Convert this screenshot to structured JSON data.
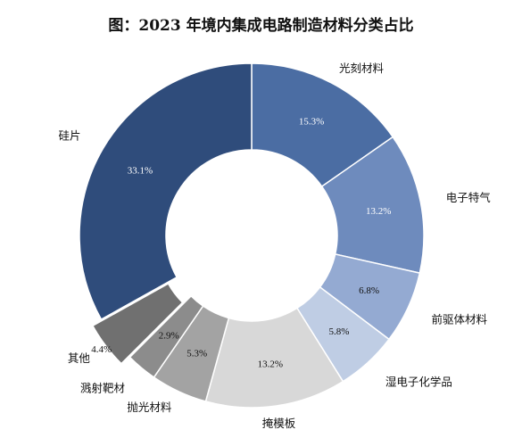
{
  "chart_data": {
    "type": "pie",
    "title": "图：2023 年境内集成电路制造材料分类占比",
    "categories": [
      "光刻材料",
      "电子特气",
      "前驱体材料",
      "湿电子化学品",
      "掩模板",
      "抛光材料",
      "溅射靶材",
      "其他",
      "硅片"
    ],
    "values": [
      15.3,
      13.2,
      6.8,
      5.8,
      13.2,
      5.3,
      2.9,
      4.4,
      33.1
    ],
    "value_labels": [
      "15.3%",
      "13.2%",
      "6.8%",
      "5.8%",
      "13.2%",
      "5.3%",
      "2.9%",
      "4.4%",
      "33.1%"
    ],
    "colors": [
      "#4b6da3",
      "#6e8bbd",
      "#94aad2",
      "#bfcde4",
      "#d8d8d8",
      "#a3a3a3",
      "#8c8c8c",
      "#707070",
      "#2f4c7b"
    ],
    "label_colors": [
      "#ffffff",
      "#ffffff",
      "#111111",
      "#111111",
      "#111111",
      "#111111",
      "#111111",
      "#111111",
      "#ffffff"
    ],
    "donut": true,
    "legend": "none",
    "exploded": [
      "其他"
    ]
  }
}
